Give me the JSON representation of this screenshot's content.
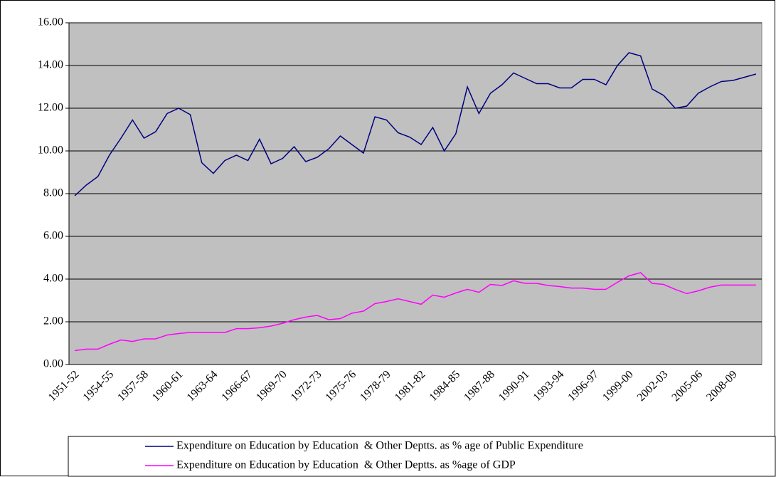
{
  "chart_data": {
    "type": "line",
    "categories": [
      "1951-52",
      null,
      null,
      "1954-55",
      null,
      null,
      "1957-58",
      null,
      null,
      "1960-61",
      null,
      null,
      "1963-64",
      null,
      null,
      "1966-67",
      null,
      null,
      "1969-70",
      null,
      null,
      "1972-73",
      null,
      null,
      "1975-76",
      null,
      null,
      "1978-79",
      null,
      null,
      "1981-82",
      null,
      null,
      "1984-85",
      null,
      null,
      "1987-88",
      null,
      null,
      "1990-91",
      null,
      null,
      "1993-94",
      null,
      null,
      "1996-97",
      null,
      null,
      "1999-00",
      null,
      null,
      "2002-03",
      null,
      null,
      "2005-06",
      null,
      null,
      "2008-09",
      null,
      null
    ],
    "series": [
      {
        "name": "Expenditure on Education by Education  & Other Deptts. as % age of Public Expenditure",
        "color": "#000080",
        "values": [
          7.9,
          8.4,
          8.8,
          9.8,
          10.6,
          11.45,
          10.6,
          10.9,
          11.75,
          12.0,
          11.7,
          9.45,
          8.95,
          9.55,
          9.8,
          9.55,
          10.55,
          9.4,
          9.65,
          10.2,
          9.5,
          9.7,
          10.1,
          10.7,
          10.3,
          9.9,
          11.6,
          11.45,
          10.85,
          10.65,
          10.3,
          11.1,
          10.0,
          10.8,
          13.0,
          11.75,
          12.7,
          13.1,
          13.65,
          13.4,
          13.15,
          13.15,
          12.95,
          12.95,
          13.35,
          13.35,
          13.1,
          14.0,
          14.6,
          14.45,
          12.9,
          12.6,
          12.0,
          12.1,
          12.7,
          13.0,
          13.25,
          13.3,
          13.45,
          13.6
        ]
      },
      {
        "name": "Expenditure on Education by Education  & Other Deptts. as %age of GDP",
        "color": "#ff00ff",
        "values": [
          0.65,
          0.72,
          0.72,
          0.95,
          1.15,
          1.08,
          1.2,
          1.2,
          1.38,
          1.45,
          1.5,
          1.5,
          1.5,
          1.5,
          1.68,
          1.68,
          1.72,
          1.8,
          1.93,
          2.1,
          2.22,
          2.3,
          2.1,
          2.15,
          2.4,
          2.5,
          2.85,
          2.95,
          3.08,
          2.95,
          2.82,
          3.25,
          3.15,
          3.35,
          3.52,
          3.38,
          3.75,
          3.7,
          3.92,
          3.8,
          3.8,
          3.7,
          3.65,
          3.58,
          3.58,
          3.52,
          3.52,
          3.85,
          4.15,
          4.3,
          3.8,
          3.75,
          3.52,
          3.32,
          3.45,
          3.62,
          3.72,
          3.72,
          3.72,
          3.72
        ]
      }
    ],
    "ylim": [
      0,
      16
    ],
    "yticks": [
      {
        "value": 0,
        "label": "0.00"
      },
      {
        "value": 2,
        "label": "2.00"
      },
      {
        "value": 4,
        "label": "4.00"
      },
      {
        "value": 6,
        "label": "6.00"
      },
      {
        "value": 8,
        "label": "8.00"
      },
      {
        "value": 10,
        "label": "10.00"
      },
      {
        "value": 12,
        "label": "12.00"
      },
      {
        "value": 14,
        "label": "14.00"
      },
      {
        "value": 16,
        "label": "16.00"
      }
    ],
    "grid": true,
    "plot_background": "#c0c0c0",
    "legend": "bottom"
  }
}
